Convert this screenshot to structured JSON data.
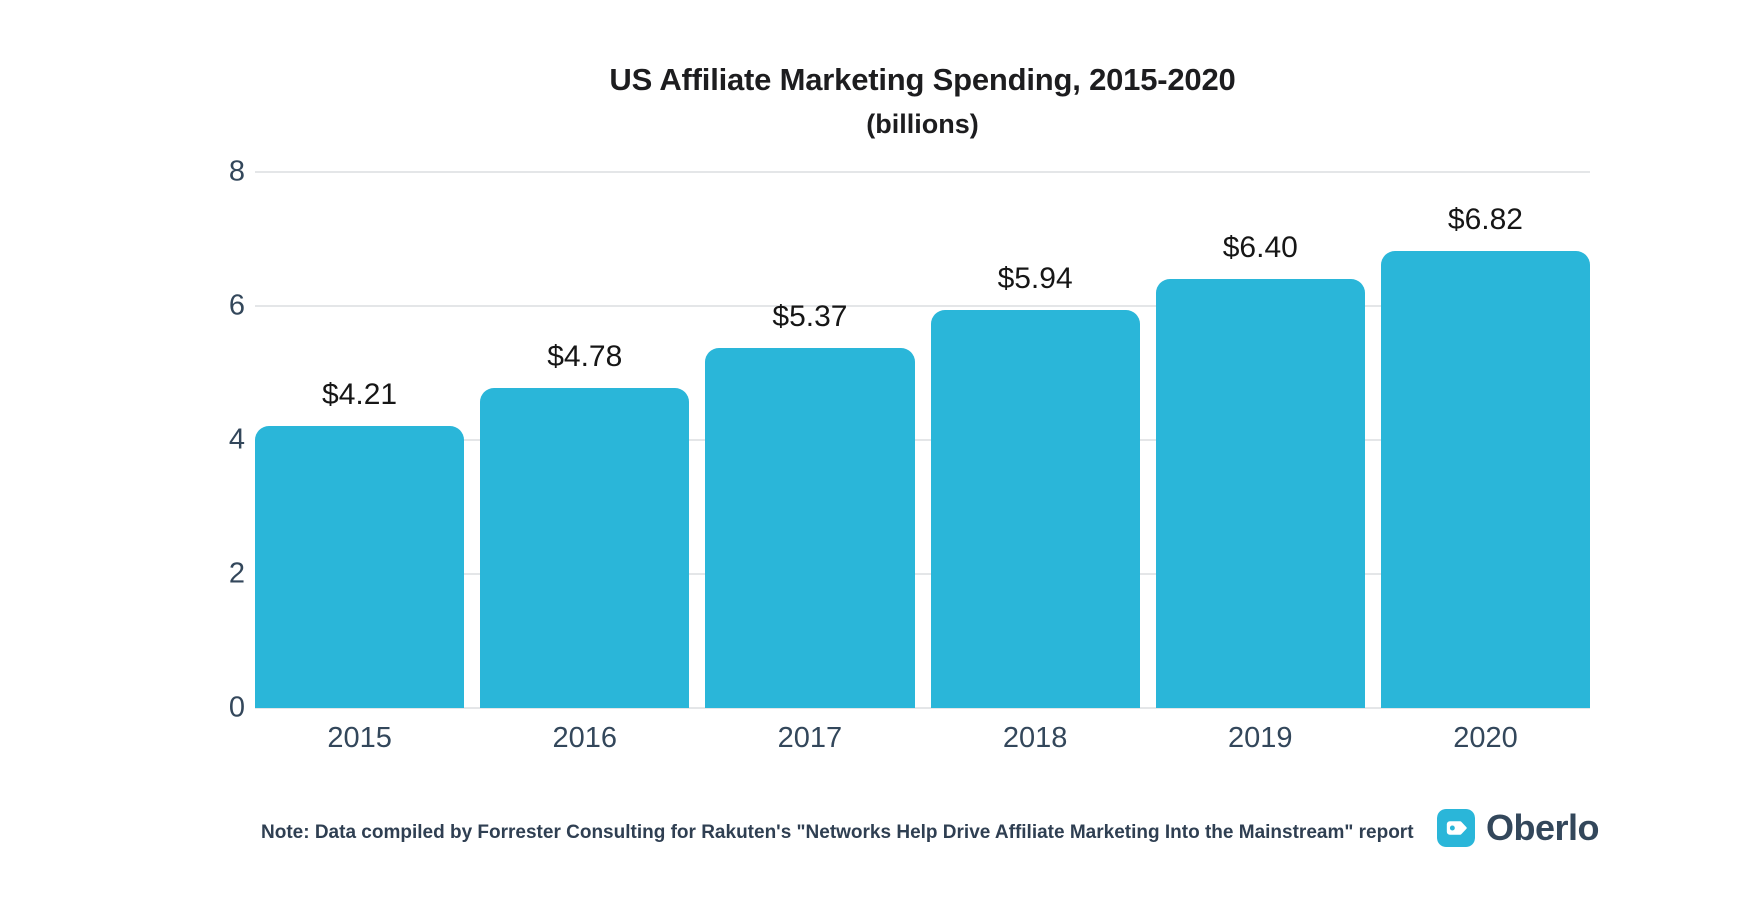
{
  "header": {
    "title": "US Affiliate Marketing Spending, 2015-2020",
    "subtitle": "(billions)"
  },
  "chart_data": {
    "type": "bar",
    "categories": [
      "2015",
      "2016",
      "2017",
      "2018",
      "2019",
      "2020"
    ],
    "values": [
      4.21,
      4.78,
      5.37,
      5.94,
      6.4,
      6.82
    ],
    "value_labels": [
      "$4.21",
      "$4.78",
      "$5.37",
      "$5.94",
      "$6.40",
      "$6.82"
    ],
    "title": "US Affiliate Marketing Spending, 2015-2020",
    "subtitle": "(billions)",
    "xlabel": "",
    "ylabel": "",
    "ylim": [
      0,
      8
    ],
    "yticks": [
      0,
      2,
      4,
      6,
      8
    ],
    "grid": true,
    "legend": false,
    "bar_color": "#2ab6d9"
  },
  "footer": {
    "note": "Note: Data compiled by Forrester Consulting for Rakuten's \"Networks Help Drive Affiliate Marketing Into the Mainstream\" report",
    "brand_name": "Oberlo"
  },
  "colors": {
    "bar": "#2ab6d9",
    "axis_text": "#33475b",
    "value_text": "#161616",
    "title_text": "#1d1d1f",
    "gridline": "#e4e6e8",
    "background": "#ffffff",
    "brand_text": "#33475b"
  }
}
